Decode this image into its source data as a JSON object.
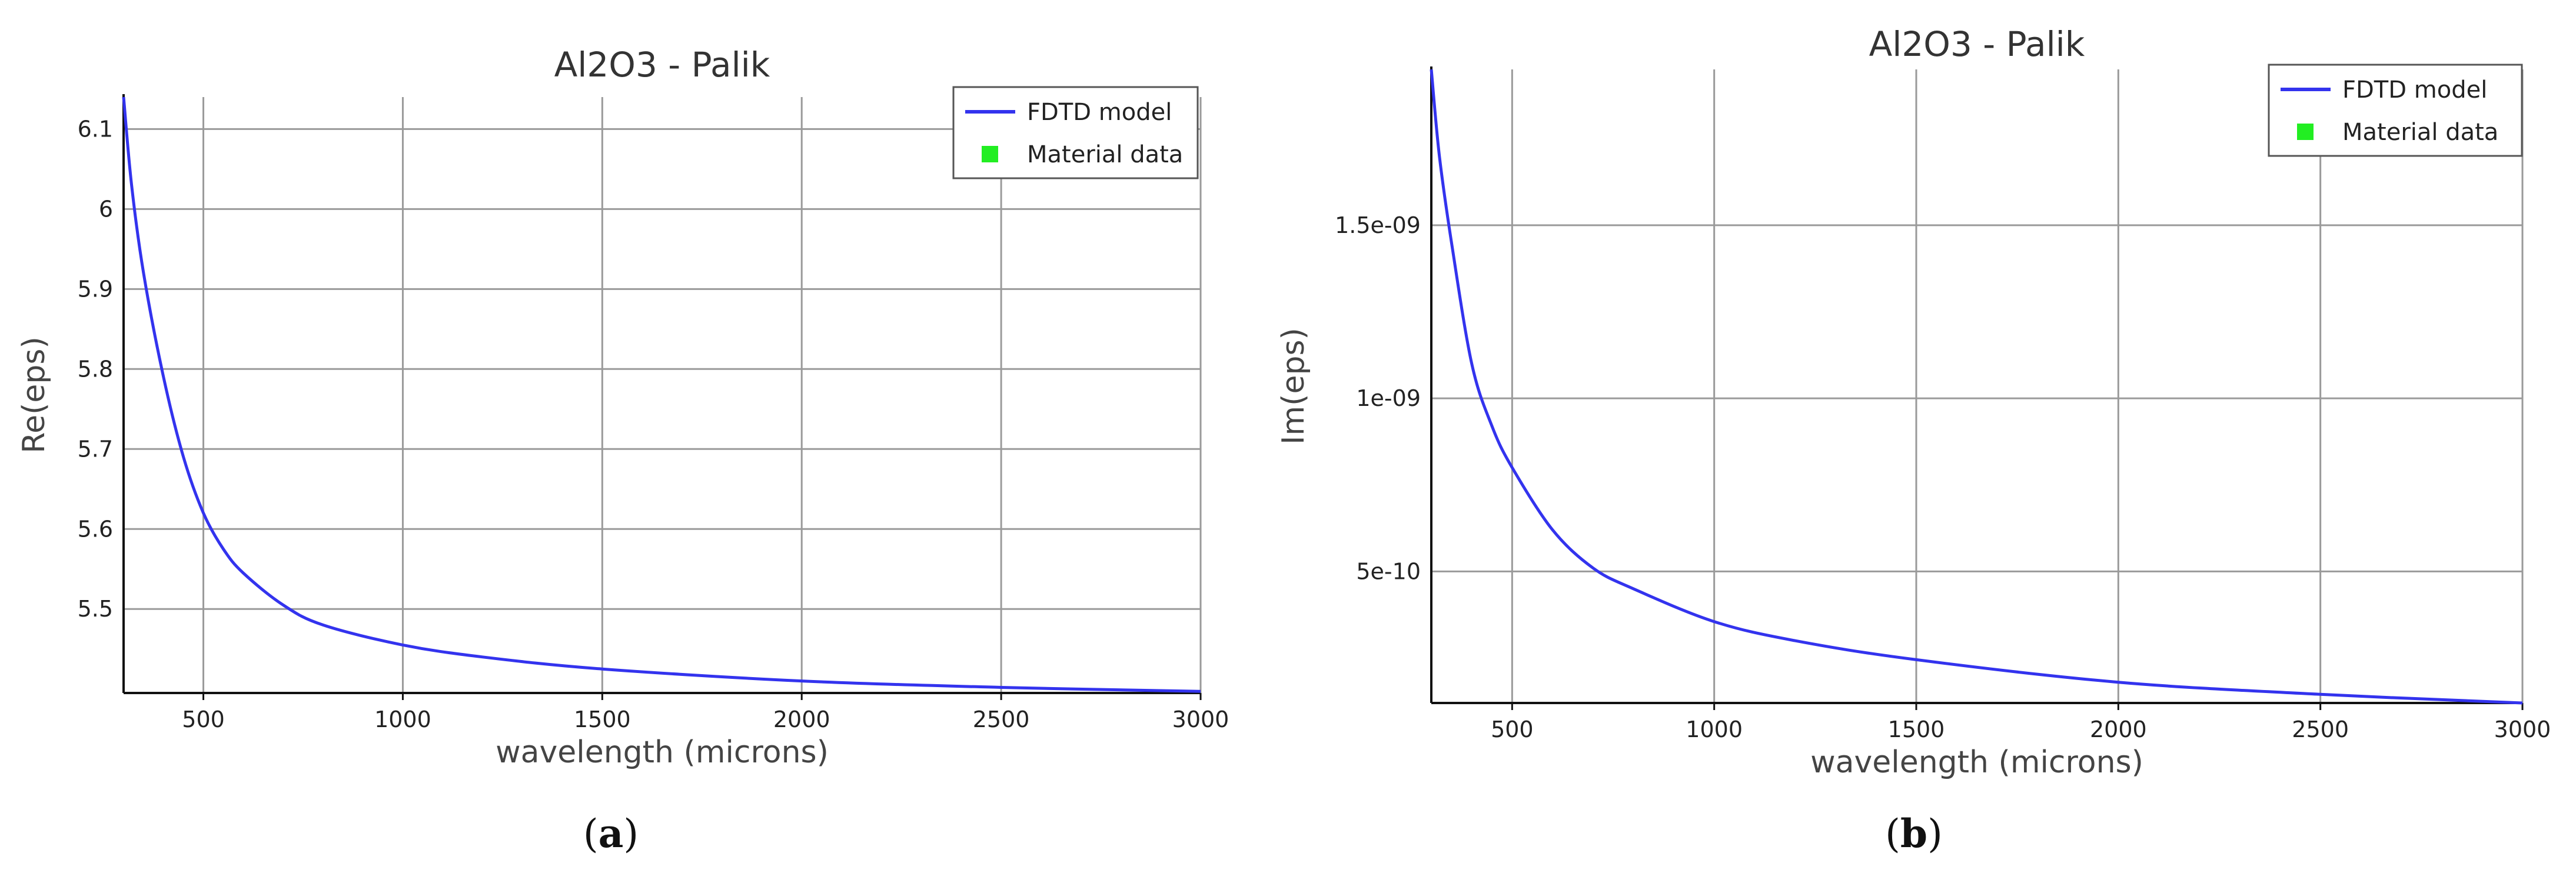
{
  "chart_data": [
    {
      "type": "line",
      "panel": "(a)",
      "panel_label": "a",
      "title": "Al2O3 - Palik",
      "xlabel": "wavelength (microns)",
      "ylabel": "Re(eps)",
      "xlim": [
        300,
        3000
      ],
      "ylim": [
        5.395,
        6.14
      ],
      "x_ticks": [
        500,
        1000,
        1500,
        2000,
        2500,
        3000
      ],
      "y_ticks": [
        5.5,
        5.6,
        5.7,
        5.8,
        5.9,
        6,
        6.1
      ],
      "y_tick_labels": [
        "5.5",
        "5.6",
        "5.7",
        "5.8",
        "5.9",
        "6",
        "6.1"
      ],
      "grid": true,
      "legend_position": "top-right",
      "legend": [
        {
          "label": "FDTD model",
          "marker": "line",
          "color": "#3333ee"
        },
        {
          "label": "Material data",
          "marker": "square",
          "color": "#22ee22"
        }
      ],
      "series": [
        {
          "name": "FDTD model",
          "color": "#3333ee",
          "x": [
            300,
            320,
            350,
            400,
            450,
            500,
            550,
            600,
            700,
            800,
            1000,
            1200,
            1500,
            2000,
            2500,
            3000
          ],
          "y": [
            6.14,
            6.03,
            5.92,
            5.79,
            5.69,
            5.62,
            5.575,
            5.545,
            5.505,
            5.48,
            5.455,
            5.44,
            5.425,
            5.41,
            5.402,
            5.397
          ]
        }
      ]
    },
    {
      "type": "line",
      "panel": "(b)",
      "panel_label": "b",
      "title": "Al2O3 - Palik",
      "xlabel": "wavelength (microns)",
      "ylabel": "Im(eps)",
      "xlim": [
        300,
        3000
      ],
      "ylim": [
        1.2e-10,
        1.95e-09
      ],
      "x_ticks": [
        500,
        1000,
        1500,
        2000,
        2500,
        3000
      ],
      "y_ticks": [
        5e-10,
        1e-09,
        1.5e-09
      ],
      "y_tick_labels": [
        "5e-10",
        "1e-09",
        "1.5e-09"
      ],
      "grid": true,
      "legend_position": "top-right",
      "legend": [
        {
          "label": "FDTD model",
          "marker": "line",
          "color": "#3333ee"
        },
        {
          "label": "Material data",
          "marker": "square",
          "color": "#22ee22"
        }
      ],
      "series": [
        {
          "name": "FDTD model",
          "color": "#3333ee",
          "x": [
            300,
            320,
            350,
            400,
            450,
            500,
            600,
            700,
            800,
            1000,
            1200,
            1500,
            2000,
            2500,
            3000
          ],
          "y": [
            1.95e-09,
            1.7e-09,
            1.45e-09,
            1.1e-09,
            9.2e-10,
            8e-10,
            6.2e-10,
            5.1e-10,
            4.5e-10,
            3.55e-10,
            3e-10,
            2.45e-10,
            1.8e-10,
            1.45e-10,
            1.2e-10
          ]
        }
      ]
    }
  ]
}
